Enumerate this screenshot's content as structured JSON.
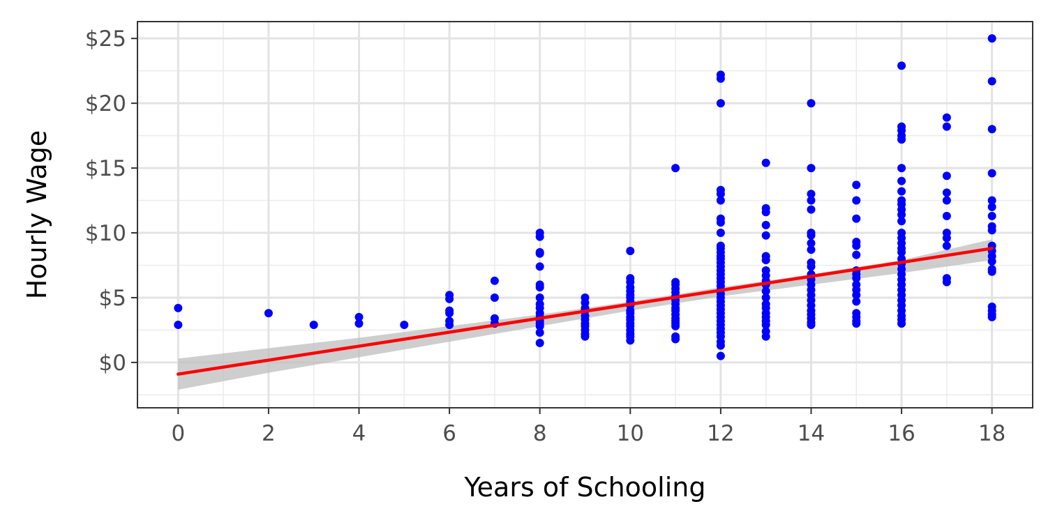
{
  "chart_data": {
    "type": "scatter",
    "xlabel": "Years of Schooling",
    "ylabel": "Hourly Wage",
    "xlim": [
      -0.9,
      18.9
    ],
    "ylim": [
      -3.5,
      26.3
    ],
    "x_ticks": [
      0,
      2,
      4,
      6,
      8,
      10,
      12,
      14,
      16,
      18
    ],
    "x_tick_labels": [
      "0",
      "2",
      "4",
      "6",
      "8",
      "10",
      "12",
      "14",
      "16",
      "18"
    ],
    "y_ticks": [
      0,
      5,
      10,
      15,
      20,
      25
    ],
    "y_tick_labels": [
      "$0",
      "$5",
      "$10",
      "$15",
      "$20",
      "$25"
    ],
    "grid": true,
    "minor_grid": true,
    "point_color": "#0000ff",
    "fit_line_color": "#ff0000",
    "ribbon_color": "#bebebe",
    "points": [
      [
        0,
        4.2
      ],
      [
        0,
        2.9
      ],
      [
        2,
        3.8
      ],
      [
        3,
        2.9
      ],
      [
        4,
        3.5
      ],
      [
        4,
        3.0
      ],
      [
        5,
        2.9
      ],
      [
        6,
        5.2
      ],
      [
        6,
        4.9
      ],
      [
        6,
        4.0
      ],
      [
        6,
        3.8
      ],
      [
        6,
        3.2
      ],
      [
        6,
        2.9
      ],
      [
        7,
        6.3
      ],
      [
        7,
        5.0
      ],
      [
        7,
        3.4
      ],
      [
        7,
        3.0
      ],
      [
        8,
        10.0
      ],
      [
        8,
        9.7
      ],
      [
        8,
        8.5
      ],
      [
        8,
        8.4
      ],
      [
        8,
        7.4
      ],
      [
        8,
        6.0
      ],
      [
        8,
        5.8
      ],
      [
        8,
        5.0
      ],
      [
        8,
        4.5
      ],
      [
        8,
        4.2
      ],
      [
        8,
        3.8
      ],
      [
        8,
        3.5
      ],
      [
        8,
        3.2
      ],
      [
        8,
        3.0
      ],
      [
        8,
        2.8
      ],
      [
        8,
        2.3
      ],
      [
        8,
        1.5
      ],
      [
        9,
        5.0
      ],
      [
        9,
        4.6
      ],
      [
        9,
        4.2
      ],
      [
        9,
        4.0
      ],
      [
        9,
        3.6
      ],
      [
        9,
        3.3
      ],
      [
        9,
        3.0
      ],
      [
        9,
        2.8
      ],
      [
        9,
        2.5
      ],
      [
        9,
        2.2
      ],
      [
        9,
        2.0
      ],
      [
        10,
        8.6
      ],
      [
        10,
        6.5
      ],
      [
        10,
        6.2
      ],
      [
        10,
        5.8
      ],
      [
        10,
        5.5
      ],
      [
        10,
        5.2
      ],
      [
        10,
        5.0
      ],
      [
        10,
        4.7
      ],
      [
        10,
        4.4
      ],
      [
        10,
        4.0
      ],
      [
        10,
        3.8
      ],
      [
        10,
        3.5
      ],
      [
        10,
        3.3
      ],
      [
        10,
        3.0
      ],
      [
        10,
        2.8
      ],
      [
        10,
        2.5
      ],
      [
        10,
        2.2
      ],
      [
        10,
        2.0
      ],
      [
        10,
        1.7
      ],
      [
        11,
        15.0
      ],
      [
        11,
        6.2
      ],
      [
        11,
        6.0
      ],
      [
        11,
        5.7
      ],
      [
        11,
        5.4
      ],
      [
        11,
        5.1
      ],
      [
        11,
        4.8
      ],
      [
        11,
        4.5
      ],
      [
        11,
        4.2
      ],
      [
        11,
        4.0
      ],
      [
        11,
        3.7
      ],
      [
        11,
        3.4
      ],
      [
        11,
        3.2
      ],
      [
        11,
        3.0
      ],
      [
        11,
        2.8
      ],
      [
        11,
        2.0
      ],
      [
        11,
        1.8
      ],
      [
        12,
        22.2
      ],
      [
        12,
        21.9
      ],
      [
        12,
        20.0
      ],
      [
        12,
        13.3
      ],
      [
        12,
        13.0
      ],
      [
        12,
        12.5
      ],
      [
        12,
        11.1
      ],
      [
        12,
        10.8
      ],
      [
        12,
        10.0
      ],
      [
        12,
        9.0
      ],
      [
        12,
        8.8
      ],
      [
        12,
        8.5
      ],
      [
        12,
        8.2
      ],
      [
        12,
        8.0
      ],
      [
        12,
        7.7
      ],
      [
        12,
        7.4
      ],
      [
        12,
        7.1
      ],
      [
        12,
        6.8
      ],
      [
        12,
        6.5
      ],
      [
        12,
        6.2
      ],
      [
        12,
        5.9
      ],
      [
        12,
        5.6
      ],
      [
        12,
        5.3
      ],
      [
        12,
        5.0
      ],
      [
        12,
        4.7
      ],
      [
        12,
        4.4
      ],
      [
        12,
        4.1
      ],
      [
        12,
        3.8
      ],
      [
        12,
        3.5
      ],
      [
        12,
        3.2
      ],
      [
        12,
        2.9
      ],
      [
        12,
        2.6
      ],
      [
        12,
        2.3
      ],
      [
        12,
        2.0
      ],
      [
        12,
        1.6
      ],
      [
        12,
        1.3
      ],
      [
        12,
        0.5
      ],
      [
        13,
        15.4
      ],
      [
        13,
        11.9
      ],
      [
        13,
        11.6
      ],
      [
        13,
        10.6
      ],
      [
        13,
        9.8
      ],
      [
        13,
        8.2
      ],
      [
        13,
        7.9
      ],
      [
        13,
        7.1
      ],
      [
        13,
        6.7
      ],
      [
        13,
        6.3
      ],
      [
        13,
        6.0
      ],
      [
        13,
        5.5
      ],
      [
        13,
        5.0
      ],
      [
        13,
        4.5
      ],
      [
        13,
        4.2
      ],
      [
        13,
        3.8
      ],
      [
        13,
        3.5
      ],
      [
        13,
        3.2
      ],
      [
        13,
        2.9
      ],
      [
        13,
        2.4
      ],
      [
        13,
        2.0
      ],
      [
        14,
        20.0
      ],
      [
        14,
        15.0
      ],
      [
        14,
        13.0
      ],
      [
        14,
        12.5
      ],
      [
        14,
        11.8
      ],
      [
        14,
        10.0
      ],
      [
        14,
        9.8
      ],
      [
        14,
        9.2
      ],
      [
        14,
        8.7
      ],
      [
        14,
        7.7
      ],
      [
        14,
        7.4
      ],
      [
        14,
        6.8
      ],
      [
        14,
        6.4
      ],
      [
        14,
        6.0
      ],
      [
        14,
        5.6
      ],
      [
        14,
        5.2
      ],
      [
        14,
        4.8
      ],
      [
        14,
        4.4
      ],
      [
        14,
        4.0
      ],
      [
        14,
        3.7
      ],
      [
        14,
        3.4
      ],
      [
        14,
        3.1
      ],
      [
        14,
        2.9
      ],
      [
        15,
        13.7
      ],
      [
        15,
        12.5
      ],
      [
        15,
        11.1
      ],
      [
        15,
        9.3
      ],
      [
        15,
        9.0
      ],
      [
        15,
        8.3
      ],
      [
        15,
        7.1
      ],
      [
        15,
        6.8
      ],
      [
        15,
        6.5
      ],
      [
        15,
        6.0
      ],
      [
        15,
        5.6
      ],
      [
        15,
        5.2
      ],
      [
        15,
        4.7
      ],
      [
        15,
        3.8
      ],
      [
        15,
        3.5
      ],
      [
        15,
        3.2
      ],
      [
        15,
        3.0
      ],
      [
        16,
        22.9
      ],
      [
        16,
        18.2
      ],
      [
        16,
        17.9
      ],
      [
        16,
        17.5
      ],
      [
        16,
        17.2
      ],
      [
        16,
        15.0
      ],
      [
        16,
        14.0
      ],
      [
        16,
        13.2
      ],
      [
        16,
        12.5
      ],
      [
        16,
        12.2
      ],
      [
        16,
        11.8
      ],
      [
        16,
        11.4
      ],
      [
        16,
        10.9
      ],
      [
        16,
        10.0
      ],
      [
        16,
        9.6
      ],
      [
        16,
        9.2
      ],
      [
        16,
        8.8
      ],
      [
        16,
        8.5
      ],
      [
        16,
        8.0
      ],
      [
        16,
        7.6
      ],
      [
        16,
        7.2
      ],
      [
        16,
        6.8
      ],
      [
        16,
        6.4
      ],
      [
        16,
        6.0
      ],
      [
        16,
        5.6
      ],
      [
        16,
        5.2
      ],
      [
        16,
        4.8
      ],
      [
        16,
        4.4
      ],
      [
        16,
        4.0
      ],
      [
        16,
        3.6
      ],
      [
        16,
        3.3
      ],
      [
        16,
        3.0
      ],
      [
        17,
        18.9
      ],
      [
        17,
        18.2
      ],
      [
        17,
        14.4
      ],
      [
        17,
        13.1
      ],
      [
        17,
        12.5
      ],
      [
        17,
        11.3
      ],
      [
        17,
        10.0
      ],
      [
        17,
        9.6
      ],
      [
        17,
        9.0
      ],
      [
        17,
        6.5
      ],
      [
        17,
        6.2
      ],
      [
        18,
        25.0
      ],
      [
        18,
        21.7
      ],
      [
        18,
        18.0
      ],
      [
        18,
        14.6
      ],
      [
        18,
        12.5
      ],
      [
        18,
        12.0
      ],
      [
        18,
        11.3
      ],
      [
        18,
        10.5
      ],
      [
        18,
        10.2
      ],
      [
        18,
        9.0
      ],
      [
        18,
        8.6
      ],
      [
        18,
        8.2
      ],
      [
        18,
        7.8
      ],
      [
        18,
        7.2
      ],
      [
        18,
        7.0
      ],
      [
        18,
        4.3
      ],
      [
        18,
        4.0
      ],
      [
        18,
        3.7
      ],
      [
        18,
        3.5
      ]
    ],
    "fit_line": {
      "x": [
        0,
        18
      ],
      "y": [
        -0.9,
        8.8
      ]
    },
    "ribbon": {
      "x": [
        0,
        2,
        4,
        6,
        8,
        10,
        12,
        14,
        16,
        18
      ],
      "lower": [
        -2.1,
        -0.8,
        0.4,
        1.6,
        2.8,
        4.0,
        5.1,
        6.0,
        6.9,
        7.9
      ],
      "upper": [
        0.3,
        1.1,
        1.9,
        2.8,
        3.7,
        4.7,
        5.8,
        6.8,
        7.9,
        9.5
      ]
    }
  }
}
